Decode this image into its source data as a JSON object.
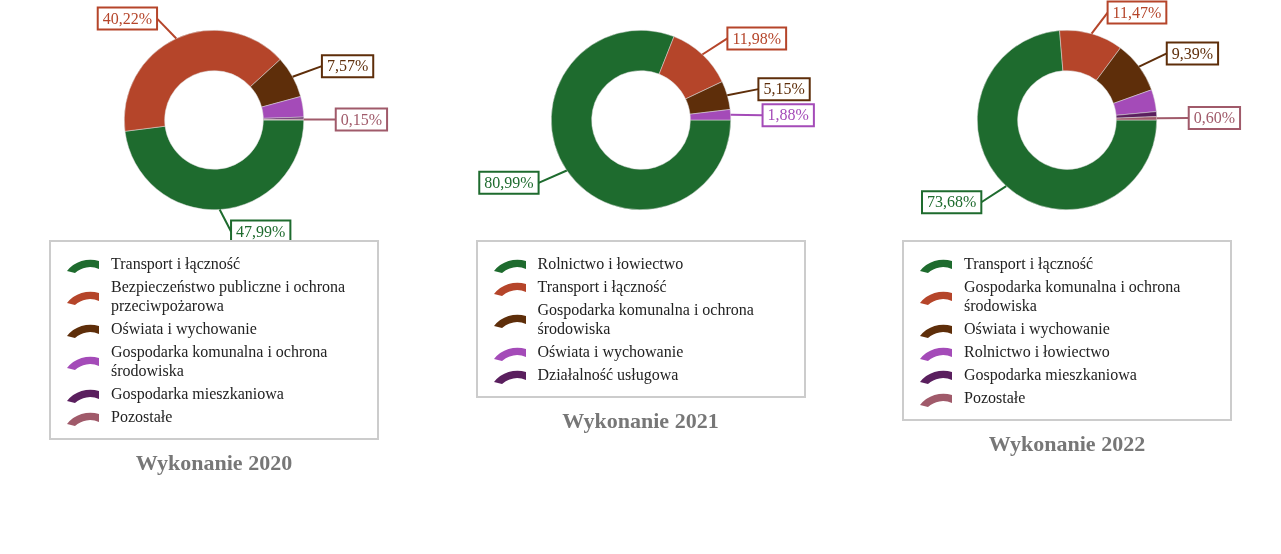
{
  "chart_data": [
    {
      "type": "donut",
      "title": "Wykonanie 2020",
      "legend": "bottom",
      "categories": [
        "Transport i łączność",
        "Bezpieczeństwo publiczne i ochrona przeciwpożarowa",
        "Oświata i wychowanie",
        "Gospodarka komunalna i ochrona środowiska",
        "Gospodarka mieszkaniowa",
        "Pozostałe"
      ],
      "values": [
        47.99,
        40.22,
        7.57,
        3.7,
        0.37,
        0.15
      ],
      "value_labels": [
        "47,99%",
        "40,22%",
        "7,57%",
        null,
        null,
        "0,15%"
      ],
      "colors": [
        "#1e6b2e",
        "#b5452a",
        "#5e2e0a",
        "#a44bb8",
        "#5a1f5e",
        "#a05a6a"
      ]
    },
    {
      "type": "donut",
      "title": "Wykonanie 2021",
      "legend": "bottom",
      "categories": [
        "Rolnictwo i łowiectwo",
        "Transport i łączność",
        "Gospodarka komunalna i ochrona środowiska",
        "Oświata i wychowanie",
        "Działalność usługowa"
      ],
      "values": [
        80.99,
        11.98,
        5.15,
        1.88,
        0
      ],
      "value_labels": [
        "80,99%",
        "11,98%",
        "5,15%",
        "1,88%",
        null
      ],
      "colors": [
        "#1e6b2e",
        "#b5452a",
        "#5e2e0a",
        "#a44bb8",
        "#5a1f5e"
      ]
    },
    {
      "type": "donut",
      "title": "Wykonanie 2022",
      "legend": "bottom",
      "categories": [
        "Transport i łączność",
        "Gospodarka komunalna i ochrona środowiska",
        "Oświata i wychowanie",
        "Rolnictwo i łowiectwo",
        "Gospodarka mieszkaniowa",
        "Pozostałe"
      ],
      "values": [
        73.68,
        11.47,
        9.39,
        3.96,
        0.9,
        0.6
      ],
      "value_labels": [
        "73,68%",
        "11,47%",
        "9,39%",
        null,
        null,
        "0,60%"
      ],
      "colors": [
        "#1e6b2e",
        "#b5452a",
        "#5e2e0a",
        "#a44bb8",
        "#5a1f5e",
        "#a05a6a"
      ]
    }
  ]
}
